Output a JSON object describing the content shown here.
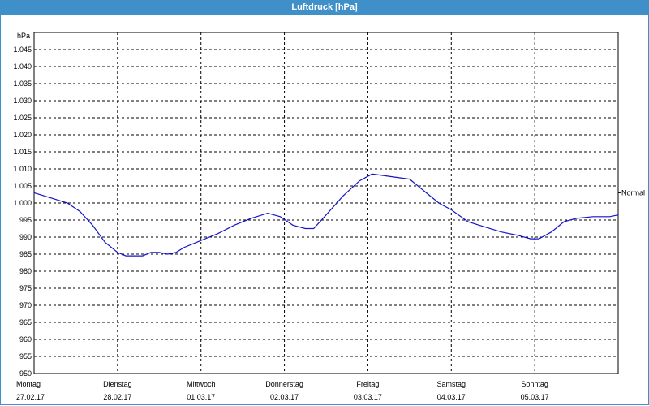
{
  "window": {
    "title": "Luftdruck [hPa]"
  },
  "chart_data": {
    "type": "line",
    "title": "Luftdruck [hPa]",
    "ylabel": "hPa",
    "ylim": [
      950,
      1050
    ],
    "ytick_step": 5,
    "yticks": [
      "950",
      "955",
      "960",
      "965",
      "970",
      "975",
      "980",
      "985",
      "990",
      "995",
      "1.000",
      "1.005",
      "1.010",
      "1.015",
      "1.020",
      "1.025",
      "1.030",
      "1.035",
      "1.040",
      "1.045"
    ],
    "xlim": [
      0,
      7
    ],
    "x_ticks": [
      {
        "day": "Montag",
        "date": "27.02.17"
      },
      {
        "day": "Dienstag",
        "date": "28.02.17"
      },
      {
        "day": "Mittwoch",
        "date": "01.03.17"
      },
      {
        "day": "Donnerstag",
        "date": "02.03.17"
      },
      {
        "day": "Freitag",
        "date": "03.03.17"
      },
      {
        "day": "Samstag",
        "date": "04.03.17"
      },
      {
        "day": "Sonntag",
        "date": "05.03.17"
      }
    ],
    "grid": true,
    "line_color": "#1414c8",
    "reference_line": {
      "label": "Normal",
      "value": 1003
    },
    "series": [
      {
        "x": [
          0,
          0.2,
          0.4,
          0.55,
          0.7,
          0.85,
          1.0,
          1.1,
          1.2,
          1.3,
          1.4,
          1.5,
          1.6,
          1.7,
          1.8,
          1.9,
          2.0,
          2.2,
          2.4,
          2.6,
          2.8,
          2.95,
          3.1,
          3.25,
          3.35,
          3.5,
          3.7,
          3.9,
          4.05,
          4.2,
          4.35,
          4.5,
          4.7,
          4.85,
          5.0,
          5.2,
          5.4,
          5.6,
          5.8,
          5.95,
          6.05,
          6.2,
          6.35,
          6.5,
          6.7,
          6.9,
          7.0
        ],
        "y": [
          1003,
          1001.5,
          1000,
          997.5,
          993.5,
          988.5,
          985.5,
          984.5,
          984.5,
          984.5,
          985.5,
          985.5,
          985,
          985.5,
          987,
          988,
          989,
          991,
          993.5,
          995.5,
          997,
          996,
          993.5,
          992.5,
          992.5,
          996.5,
          1002,
          1006.5,
          1008.5,
          1008,
          1007.5,
          1007,
          1003,
          1000,
          998,
          994.5,
          993,
          991.5,
          990.5,
          989.5,
          989.5,
          991.5,
          994.5,
          995.5,
          996,
          996,
          996.5
        ]
      }
    ]
  }
}
